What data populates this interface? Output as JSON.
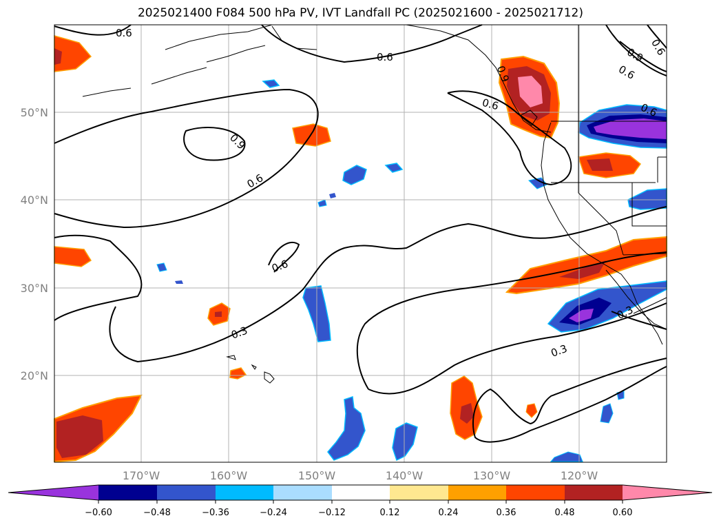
{
  "title": "2025021400 F084 500 hPa PV, IVT Landfall PC (2025021600 - 2025021712)",
  "map": {
    "lon_ticks": [
      "170°W",
      "160°W",
      "150°W",
      "140°W",
      "130°W",
      "120°W"
    ],
    "lat_ticks": [
      "50°N",
      "40°N",
      "30°N",
      "20°N"
    ],
    "gridline_color": "#b0b0b0",
    "contour_labels": [
      "0.6",
      "0.6",
      "0.9",
      "0.6",
      "0.6",
      "0.6",
      "0.3",
      "0.3",
      "0.3",
      "0.6",
      "0.9",
      "0.6",
      "0.9",
      "0.6"
    ]
  },
  "colorbar": {
    "tick_labels": [
      "−0.60",
      "−0.48",
      "−0.36",
      "−0.24",
      "−0.12",
      "0.12",
      "0.24",
      "0.36",
      "0.48",
      "0.60"
    ],
    "colors": [
      "#9933dd",
      "#000090",
      "#3355cc",
      "#00bbff",
      "#aaddff",
      "#ffffff",
      "#ffe890",
      "#ffa000",
      "#ff4500",
      "#b22222",
      "#ff88aa"
    ]
  }
}
